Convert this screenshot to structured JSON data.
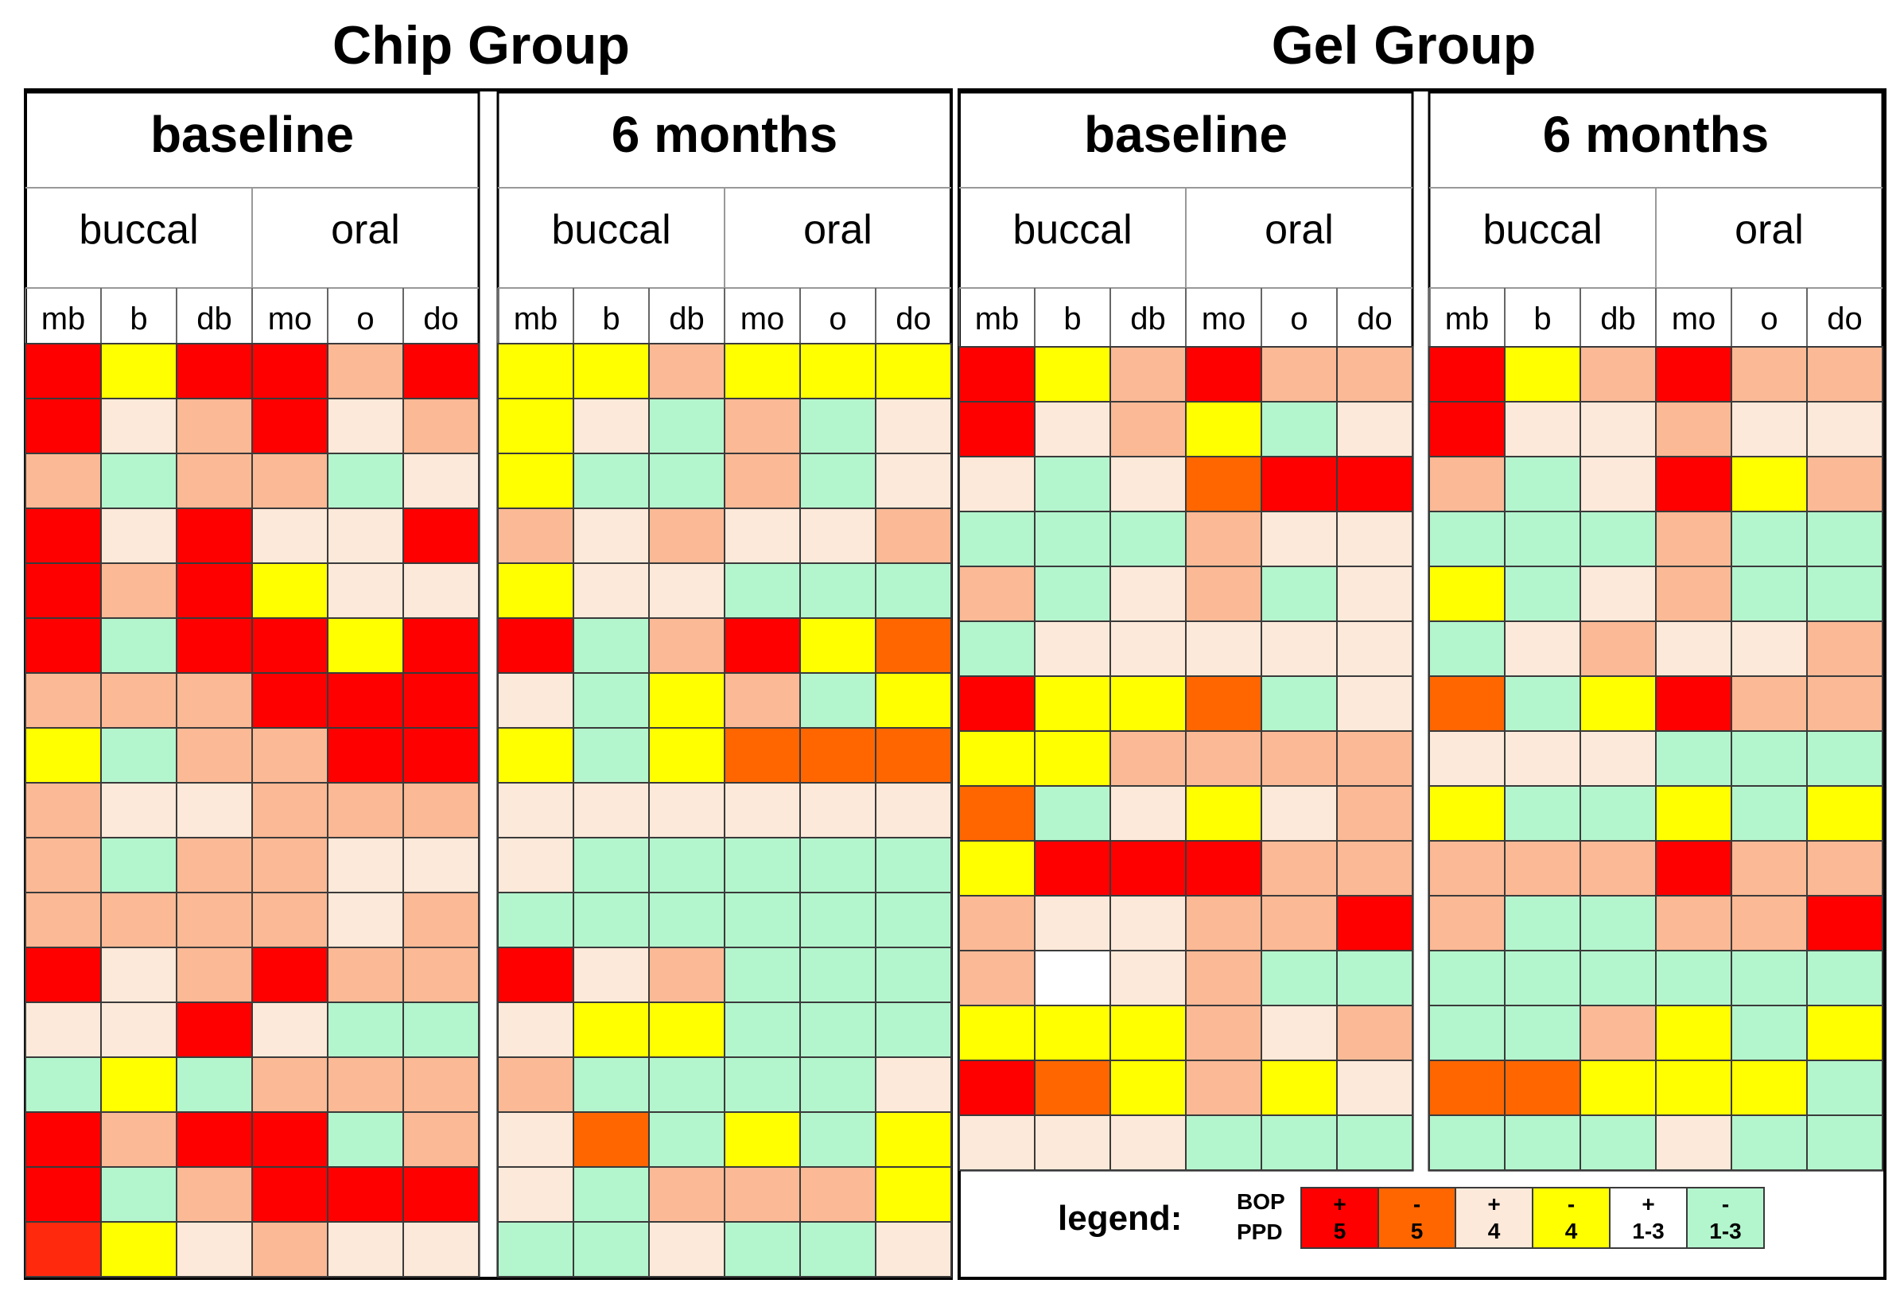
{
  "chart_data": {
    "type": "heatmap",
    "colors": {
      "red": "#ff0000",
      "orange": "#ff6600",
      "salmon": "#fbb995",
      "yellow": "#ffff00",
      "peach": "#fde9d9",
      "mint": "#b3f5cd",
      "white": "#ffffff",
      "redbright": "#ff2a0d"
    },
    "groups": [
      {
        "title": "Chip Group",
        "periods": [
          {
            "title": "baseline",
            "sides": [
              "buccal",
              "oral"
            ],
            "sites": [
              "mb",
              "b",
              "db",
              "mo",
              "o",
              "do"
            ],
            "rows": [
              [
                "red",
                "yellow",
                "red",
                "red",
                "salmon",
                "red"
              ],
              [
                "red",
                "peach",
                "salmon",
                "red",
                "peach",
                "salmon"
              ],
              [
                "salmon",
                "mint",
                "salmon",
                "salmon",
                "mint",
                "peach"
              ],
              [
                "red",
                "peach",
                "red",
                "peach",
                "peach",
                "red"
              ],
              [
                "red",
                "salmon",
                "red",
                "yellow",
                "peach",
                "peach"
              ],
              [
                "red",
                "mint",
                "red",
                "red",
                "yellow",
                "red"
              ],
              [
                "salmon",
                "salmon",
                "salmon",
                "red",
                "red",
                "red"
              ],
              [
                "yellow",
                "mint",
                "salmon",
                "salmon",
                "red",
                "red"
              ],
              [
                "salmon",
                "peach",
                "peach",
                "salmon",
                "salmon",
                "salmon"
              ],
              [
                "salmon",
                "mint",
                "salmon",
                "salmon",
                "peach",
                "peach"
              ],
              [
                "salmon",
                "salmon",
                "salmon",
                "salmon",
                "peach",
                "salmon"
              ],
              [
                "red",
                "peach",
                "salmon",
                "red",
                "salmon",
                "salmon"
              ],
              [
                "peach",
                "peach",
                "red",
                "peach",
                "mint",
                "mint"
              ],
              [
                "mint",
                "yellow",
                "mint",
                "salmon",
                "salmon",
                "salmon"
              ],
              [
                "red",
                "salmon",
                "red",
                "red",
                "mint",
                "salmon"
              ],
              [
                "red",
                "mint",
                "salmon",
                "red",
                "red",
                "red"
              ],
              [
                "redbright",
                "yellow",
                "peach",
                "salmon",
                "peach",
                "peach"
              ]
            ]
          },
          {
            "title": "6 months",
            "sides": [
              "buccal",
              "oral"
            ],
            "sites": [
              "mb",
              "b",
              "db",
              "mo",
              "o",
              "do"
            ],
            "rows": [
              [
                "yellow",
                "yellow",
                "salmon",
                "yellow",
                "yellow",
                "yellow"
              ],
              [
                "yellow",
                "peach",
                "mint",
                "salmon",
                "mint",
                "peach"
              ],
              [
                "yellow",
                "mint",
                "mint",
                "salmon",
                "mint",
                "peach"
              ],
              [
                "salmon",
                "peach",
                "salmon",
                "peach",
                "peach",
                "salmon"
              ],
              [
                "yellow",
                "peach",
                "peach",
                "mint",
                "mint",
                "mint"
              ],
              [
                "red",
                "mint",
                "salmon",
                "red",
                "yellow",
                "orange"
              ],
              [
                "peach",
                "mint",
                "yellow",
                "salmon",
                "mint",
                "yellow"
              ],
              [
                "yellow",
                "mint",
                "yellow",
                "orange",
                "orange",
                "orange"
              ],
              [
                "peach",
                "peach",
                "peach",
                "peach",
                "peach",
                "peach"
              ],
              [
                "peach",
                "mint",
                "mint",
                "mint",
                "mint",
                "mint"
              ],
              [
                "mint",
                "mint",
                "mint",
                "mint",
                "mint",
                "mint"
              ],
              [
                "red",
                "peach",
                "salmon",
                "mint",
                "mint",
                "mint"
              ],
              [
                "peach",
                "yellow",
                "yellow",
                "mint",
                "mint",
                "mint"
              ],
              [
                "salmon",
                "mint",
                "mint",
                "mint",
                "mint",
                "peach"
              ],
              [
                "peach",
                "orange",
                "mint",
                "yellow",
                "mint",
                "yellow"
              ],
              [
                "peach",
                "mint",
                "salmon",
                "salmon",
                "salmon",
                "yellow"
              ],
              [
                "mint",
                "mint",
                "peach",
                "mint",
                "mint",
                "peach"
              ]
            ]
          }
        ]
      },
      {
        "title": "Gel Group",
        "periods": [
          {
            "title": "baseline",
            "sides": [
              "buccal",
              "oral"
            ],
            "sites": [
              "mb",
              "b",
              "db",
              "mo",
              "o",
              "do"
            ],
            "rows": [
              [
                "red",
                "yellow",
                "salmon",
                "red",
                "salmon",
                "salmon"
              ],
              [
                "red",
                "peach",
                "salmon",
                "yellow",
                "mint",
                "peach"
              ],
              [
                "peach",
                "mint",
                "peach",
                "orange",
                "red",
                "red"
              ],
              [
                "mint",
                "mint",
                "mint",
                "salmon",
                "peach",
                "peach"
              ],
              [
                "salmon",
                "mint",
                "peach",
                "salmon",
                "mint",
                "peach"
              ],
              [
                "mint",
                "peach",
                "peach",
                "peach",
                "peach",
                "peach"
              ],
              [
                "red",
                "yellow",
                "yellow",
                "orange",
                "mint",
                "peach"
              ],
              [
                "yellow",
                "yellow",
                "salmon",
                "salmon",
                "salmon",
                "salmon"
              ],
              [
                "orange",
                "mint",
                "peach",
                "yellow",
                "peach",
                "salmon"
              ],
              [
                "yellow",
                "red",
                "red",
                "red",
                "salmon",
                "salmon"
              ],
              [
                "salmon",
                "peach",
                "peach",
                "salmon",
                "salmon",
                "red"
              ],
              [
                "salmon",
                "white",
                "peach",
                "salmon",
                "mint",
                "mint"
              ],
              [
                "yellow",
                "yellow",
                "yellow",
                "salmon",
                "peach",
                "salmon"
              ],
              [
                "red",
                "orange",
                "yellow",
                "salmon",
                "yellow",
                "peach"
              ],
              [
                "peach",
                "peach",
                "peach",
                "mint",
                "mint",
                "mint"
              ]
            ]
          },
          {
            "title": "6 months",
            "sides": [
              "buccal",
              "oral"
            ],
            "sites": [
              "mb",
              "b",
              "db",
              "mo",
              "o",
              "do"
            ],
            "rows": [
              [
                "red",
                "yellow",
                "salmon",
                "red",
                "salmon",
                "salmon"
              ],
              [
                "red",
                "peach",
                "peach",
                "salmon",
                "peach",
                "peach"
              ],
              [
                "salmon",
                "mint",
                "peach",
                "red",
                "yellow",
                "salmon"
              ],
              [
                "mint",
                "mint",
                "mint",
                "salmon",
                "mint",
                "mint"
              ],
              [
                "yellow",
                "mint",
                "peach",
                "salmon",
                "mint",
                "mint"
              ],
              [
                "mint",
                "peach",
                "salmon",
                "peach",
                "peach",
                "salmon"
              ],
              [
                "orange",
                "mint",
                "yellow",
                "red",
                "salmon",
                "salmon"
              ],
              [
                "peach",
                "peach",
                "peach",
                "mint",
                "mint",
                "mint"
              ],
              [
                "yellow",
                "mint",
                "mint",
                "yellow",
                "mint",
                "yellow"
              ],
              [
                "salmon",
                "salmon",
                "salmon",
                "red",
                "salmon",
                "salmon"
              ],
              [
                "salmon",
                "mint",
                "mint",
                "salmon",
                "salmon",
                "red"
              ],
              [
                "mint",
                "mint",
                "mint",
                "mint",
                "mint",
                "mint"
              ],
              [
                "mint",
                "mint",
                "salmon",
                "yellow",
                "mint",
                "yellow"
              ],
              [
                "orange",
                "orange",
                "yellow",
                "yellow",
                "yellow",
                "mint"
              ],
              [
                "mint",
                "mint",
                "mint",
                "peach",
                "mint",
                "mint"
              ]
            ]
          }
        ]
      }
    ],
    "legend": {
      "title": "legend:",
      "row_labels": [
        "BOP",
        "PPD"
      ],
      "items": [
        {
          "bop": "+",
          "ppd": "5",
          "color": "red"
        },
        {
          "bop": "-",
          "ppd": "5",
          "color": "orange"
        },
        {
          "bop": "+",
          "ppd": "4",
          "color": "peach"
        },
        {
          "bop": "-",
          "ppd": "4",
          "color": "yellow"
        },
        {
          "bop": "+",
          "ppd": "1-3",
          "color": "white"
        },
        {
          "bop": "-",
          "ppd": "1-3",
          "color": "mint"
        }
      ]
    }
  }
}
